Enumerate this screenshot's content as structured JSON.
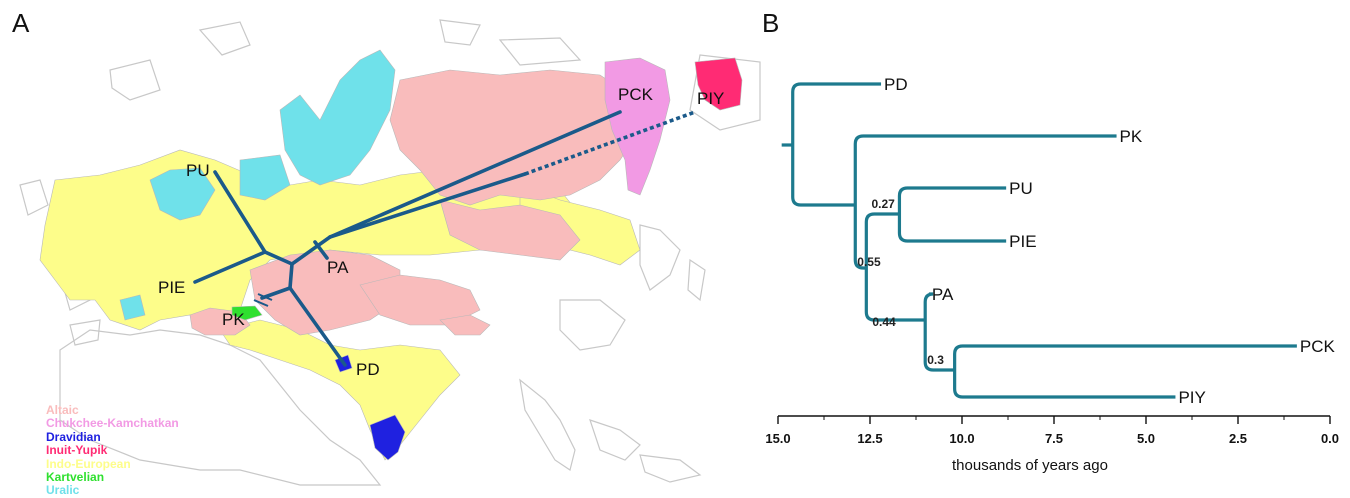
{
  "panels": {
    "a": "A",
    "b": "B"
  },
  "colors": {
    "altaic": "#f9bcbc",
    "chukchee": "#f29ae4",
    "dravidian": "#1f21e0",
    "inuit": "#ff2b74",
    "indo_european": "#fdfd8a",
    "kartvelian": "#2fe02f",
    "uralic": "#6fe1ea",
    "land_outline": "#c8c8c8",
    "tree_line_map": "#1b5a8a",
    "tree_line": "#1d7a8e"
  },
  "legend": [
    {
      "label": "Altaic",
      "color": "#f9bcbc"
    },
    {
      "label": "Chukchee-Kamchatkan",
      "color": "#f29ae4"
    },
    {
      "label": "Dravidian",
      "color": "#1f21e0"
    },
    {
      "label": "Inuit-Yupik",
      "color": "#ff2b74"
    },
    {
      "label": "Indo-European",
      "color": "#fdfd8a"
    },
    {
      "label": "Kartvelian",
      "color": "#2fe02f"
    },
    {
      "label": "Uralic",
      "color": "#6fe1ea"
    }
  ],
  "map_labels": {
    "pu": "PU",
    "pie": "PIE",
    "pk": "PK",
    "pa": "PA",
    "pd": "PD",
    "pck": "PCK",
    "piy": "PIY"
  },
  "tree": {
    "leaves": [
      {
        "name": "PD",
        "age": 12.2
      },
      {
        "name": "PK",
        "age": 5.8
      },
      {
        "name": "PU",
        "age": 8.8
      },
      {
        "name": "PIE",
        "age": 8.8
      },
      {
        "name": "PA",
        "age": 10.9
      },
      {
        "name": "PCK",
        "age": 0.9
      },
      {
        "name": "PIY",
        "age": 4.2
      }
    ],
    "node_labels": [
      {
        "text": "0.27"
      },
      {
        "text": "0.55"
      },
      {
        "text": "0.44"
      },
      {
        "text": "0.3"
      }
    ],
    "axis": {
      "ticks": [
        "15.0",
        "12.5",
        "10.0",
        "7.5",
        "5.0",
        "2.5",
        "0.0"
      ],
      "title": "thousands of years ago"
    }
  }
}
